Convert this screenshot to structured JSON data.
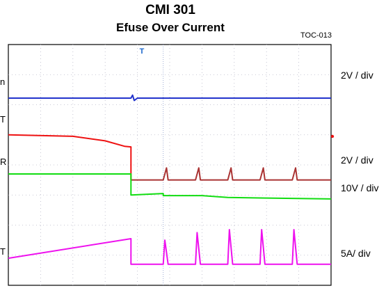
{
  "chart_data": {
    "type": "line",
    "title": "CMI  301",
    "subtitle": "Efuse Over Current",
    "annotation": "TOC-013",
    "trigger_marker": "T",
    "grid": true,
    "divisions": {
      "x": 10,
      "y": 8
    },
    "channel_labels": [
      "n",
      "T",
      "R",
      "T"
    ],
    "scale_labels": [
      "2V / div",
      "2V / div",
      "10V / div",
      "5A/ div"
    ],
    "series": [
      {
        "color": "#2233cc",
        "x": [
          0,
          3.8,
          3.85,
          3.9,
          4.0,
          10
        ],
        "y": [
          6.22,
          6.22,
          6.32,
          6.14,
          6.22,
          6.22
        ]
      },
      {
        "color": "#ee1111",
        "x": [
          0,
          2.0,
          3.0,
          3.6,
          3.8,
          3.8
        ],
        "y": [
          5.0,
          4.95,
          4.8,
          4.62,
          4.6,
          3.5
        ]
      },
      {
        "color": "#aa3333",
        "x": [
          3.8,
          3.9,
          4.8,
          4.9,
          4.95,
          5.0,
          5.8,
          5.9,
          5.95,
          6.0,
          6.8,
          6.9,
          6.95,
          7.0,
          7.8,
          7.9,
          7.95,
          8.0,
          8.8,
          8.9,
          8.95,
          9.0,
          10
        ],
        "y": [
          3.5,
          3.5,
          3.5,
          3.9,
          3.5,
          3.5,
          3.5,
          3.9,
          3.5,
          3.5,
          3.5,
          3.9,
          3.5,
          3.5,
          3.5,
          3.9,
          3.5,
          3.5,
          3.5,
          3.9,
          3.5,
          3.5,
          3.5
        ]
      },
      {
        "color": "#11dd11",
        "x": [
          0,
          3.8,
          3.8,
          4.8,
          4.8,
          6.0,
          6.8,
          8.0,
          10
        ],
        "y": [
          3.7,
          3.7,
          3.0,
          3.05,
          2.98,
          2.98,
          2.92,
          2.9,
          2.87
        ]
      },
      {
        "color": "#ee11ee",
        "x": [
          0,
          3.8,
          3.8,
          4.8,
          4.85,
          4.95,
          5.0,
          5.8,
          5.85,
          5.95,
          6.0,
          6.8,
          6.85,
          6.95,
          7.0,
          7.8,
          7.85,
          7.95,
          8.0,
          8.8,
          8.85,
          8.95,
          9.0,
          10
        ],
        "y": [
          0.9,
          1.55,
          0.7,
          0.7,
          1.5,
          0.7,
          0.7,
          0.7,
          1.75,
          0.7,
          0.7,
          0.7,
          1.85,
          0.7,
          0.7,
          0.7,
          1.85,
          0.7,
          0.7,
          0.7,
          1.85,
          0.7,
          0.7,
          0.7
        ]
      }
    ]
  }
}
